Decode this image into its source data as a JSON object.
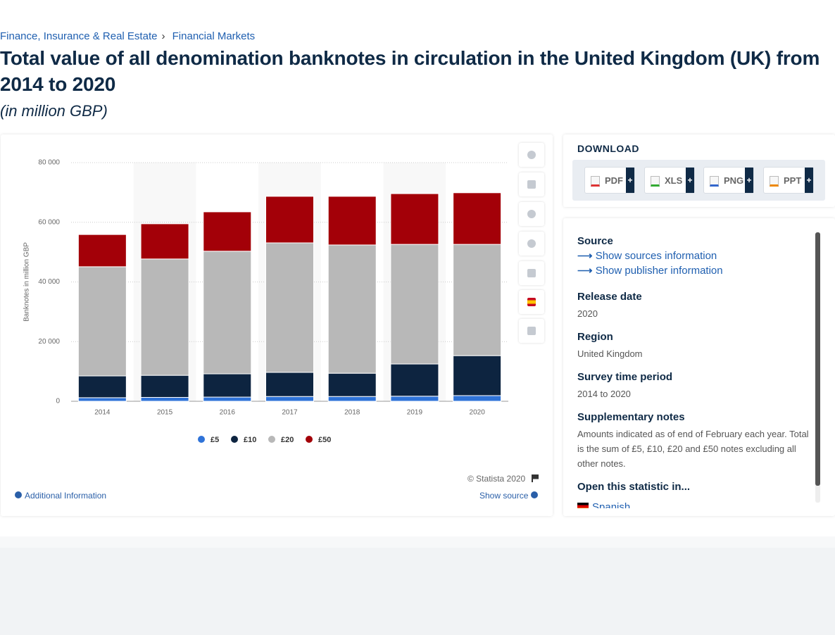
{
  "breadcrumb": [
    "Finance, Insurance & Real Estate",
    "Financial Markets"
  ],
  "breadcrumb_separator": "›",
  "chart_data": {
    "type": "stacked-bar",
    "title": "Total value of all denomination banknotes in circulation in the United Kingdom (UK) from 2014 to 2020",
    "subtitle": "(in million GBP)",
    "y_label": "Banknotes in million GBP",
    "categories": [
      "2014",
      "2015",
      "2016",
      "2017",
      "2018",
      "2019",
      "2020"
    ],
    "series": [
      {
        "name": "£5",
        "color": "#2f73d8",
        "values": [
          1200,
          1300,
          1400,
          1600,
          1600,
          1700,
          1900
        ]
      },
      {
        "name": "£10",
        "color": "#0d2440",
        "values": [
          7300,
          7400,
          7800,
          8100,
          7800,
          10800,
          13400
        ]
      },
      {
        "name": "£20",
        "color": "#b8b8b8",
        "values": [
          36600,
          39000,
          41100,
          43400,
          43000,
          40100,
          37300
        ]
      },
      {
        "name": "£50",
        "color": "#a30008",
        "values": [
          10800,
          11800,
          13200,
          15600,
          16300,
          17000,
          17300
        ]
      }
    ],
    "ylim": [
      0,
      80000
    ],
    "yticks": [
      0,
      {
        "value": 20000,
        "label": "20 000"
      },
      {
        "value": 40000,
        "label": "40 000"
      },
      {
        "value": 60000,
        "label": "60 000"
      },
      {
        "value": 80000,
        "label": "80 000"
      }
    ],
    "grid": true,
    "legend": "bottom",
    "copyright": "© Statista 2020",
    "additional_info": "Additional Information",
    "show_source": "Show source"
  },
  "download": {
    "heading": "DOWNLOAD",
    "formats": [
      "PDF",
      "XLS",
      "PNG",
      "PPT"
    ],
    "plus": "+"
  },
  "source_panel": {
    "source_heading": "Source",
    "links": [
      "Show sources information",
      "Show publisher information"
    ],
    "fields": [
      {
        "label": "Release date",
        "value": "2020"
      },
      {
        "label": "Region",
        "value": "United Kingdom"
      },
      {
        "label": "Survey time period",
        "value": "2014 to 2020"
      },
      {
        "label": "Supplementary notes",
        "value": "Amounts indicated as of end of February each year. Total is the sum of £5, £10, £20 and £50 notes excluding all other notes."
      }
    ],
    "open_heading": "Open this statistic in...",
    "languages": [
      "Spanish"
    ]
  }
}
